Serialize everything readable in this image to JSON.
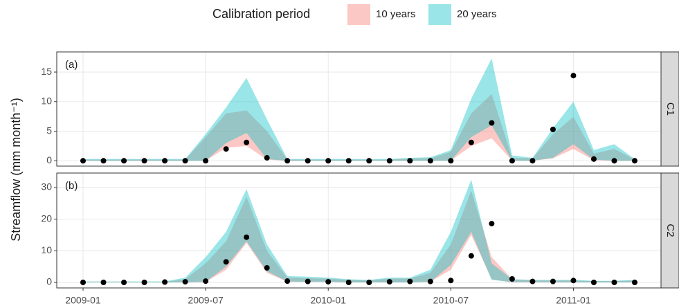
{
  "chart_data": {
    "type": "ribbon",
    "legend_title": "Calibration period",
    "y_label": "Streamflow (mm month⁻¹)",
    "series": [
      {
        "name": "10 years",
        "color": "#F8766D"
      },
      {
        "name": "20 years",
        "color": "#00BFC4"
      }
    ],
    "x": [
      "2009-01",
      "2009-02",
      "2009-03",
      "2009-04",
      "2009-05",
      "2009-06",
      "2009-07",
      "2009-08",
      "2009-09",
      "2009-10",
      "2009-11",
      "2009-12",
      "2010-01",
      "2010-02",
      "2010-03",
      "2010-04",
      "2010-05",
      "2010-06",
      "2010-07",
      "2010-08",
      "2010-09",
      "2010-10",
      "2010-11",
      "2010-12",
      "2011-01",
      "2011-02",
      "2011-03",
      "2011-04"
    ],
    "xticks": [
      "2009-01",
      "2009-07",
      "2010-01",
      "2010-07",
      "2011-01"
    ],
    "grid": true,
    "panels": [
      {
        "label": "(a)",
        "strip": "C1",
        "ylim": [
          -0.9,
          18.4
        ],
        "yticks": [
          0,
          5,
          10,
          15
        ],
        "bands": [
          {
            "upper": [
              0.2,
              0.2,
              0.2,
              0.2,
              0.2,
              0.2,
              4,
              8,
              8.5,
              5,
              0.2,
              0.2,
              0.2,
              0.2,
              0.2,
              0.2,
              0.4,
              0.4,
              1.5,
              8,
              11.3,
              0.5,
              0.4,
              4.5,
              7.4,
              1.2,
              2,
              0.2
            ],
            "lower": [
              0,
              0,
              0,
              0,
              0,
              0,
              0,
              2.2,
              2.5,
              0.2,
              0,
              0,
              0,
              0,
              0,
              0,
              0,
              0,
              0,
              2.5,
              3.8,
              0,
              0,
              0.4,
              2,
              0.1,
              0,
              0
            ]
          },
          {
            "upper": [
              0.3,
              0.3,
              0.3,
              0.3,
              0.3,
              0.3,
              4.5,
              9,
              14,
              7,
              0.3,
              0.3,
              0.3,
              0.3,
              0.3,
              0.3,
              0.5,
              0.6,
              1.8,
              10.5,
              17.3,
              0.9,
              0.5,
              5.5,
              10,
              1.8,
              2.8,
              0.3
            ],
            "lower": [
              0,
              0,
              0,
              0,
              0,
              0,
              0,
              3,
              4.7,
              0.3,
              0,
              0,
              0,
              0,
              0,
              0,
              0,
              0,
              0,
              4,
              6,
              0,
              0,
              0.5,
              2.8,
              0.2,
              0,
              0
            ]
          }
        ],
        "observed": [
          0,
          0,
          0,
          0,
          0,
          0,
          0,
          2,
          3.1,
          0.5,
          0,
          0,
          0,
          0,
          0,
          0,
          0,
          0,
          0,
          3.1,
          6.4,
          0,
          0,
          5.3,
          14.4,
          0.3,
          0,
          0
        ]
      },
      {
        "label": "(b)",
        "strip": "C2",
        "ylim": [
          -1.75,
          34.6
        ],
        "yticks": [
          0,
          10,
          20,
          30
        ],
        "bands": [
          {
            "upper": [
              0.2,
              0.2,
              0.2,
              0.2,
              0.2,
              1,
              6,
              13,
              27,
              10,
              1.5,
              1.3,
              1.2,
              0.8,
              0.6,
              1.2,
              1.2,
              3,
              12,
              29,
              8,
              1,
              0.6,
              0.6,
              0.6,
              0.4,
              0.4,
              0.6
            ],
            "lower": [
              0,
              0,
              0,
              0,
              0,
              0,
              0.1,
              4,
              12.5,
              3,
              0.2,
              0.2,
              0.2,
              0,
              0,
              0,
              0,
              0.2,
              4,
              15,
              1,
              0,
              0,
              0,
              0,
              0,
              0,
              0
            ]
          },
          {
            "upper": [
              0.3,
              0.3,
              0.3,
              0.3,
              0.3,
              1.5,
              8,
              16,
              29.5,
              12,
              2,
              1.8,
              1.5,
              1,
              0.8,
              1.5,
              1.5,
              4,
              16,
              32.5,
              6,
              1,
              0.8,
              0.8,
              0.8,
              0.5,
              0.5,
              0.8
            ],
            "lower": [
              0,
              0,
              0,
              0,
              0,
              0,
              0.2,
              5,
              13,
              3.5,
              0.3,
              0.2,
              0.2,
              0,
              0,
              0,
              0,
              0.2,
              5.5,
              16,
              0.8,
              0.1,
              0.1,
              0.1,
              0,
              0,
              0,
              0
            ]
          }
        ],
        "observed": [
          0,
          0,
          0,
          0,
          0.1,
          0.2,
          0.4,
          6.5,
          14.3,
          4.6,
          0.4,
          0.3,
          0.2,
          0,
          0,
          0.2,
          0.3,
          0.3,
          0.6,
          8.4,
          18.6,
          1.1,
          0.3,
          0.3,
          0.6,
          0,
          0,
          0
        ]
      }
    ]
  }
}
